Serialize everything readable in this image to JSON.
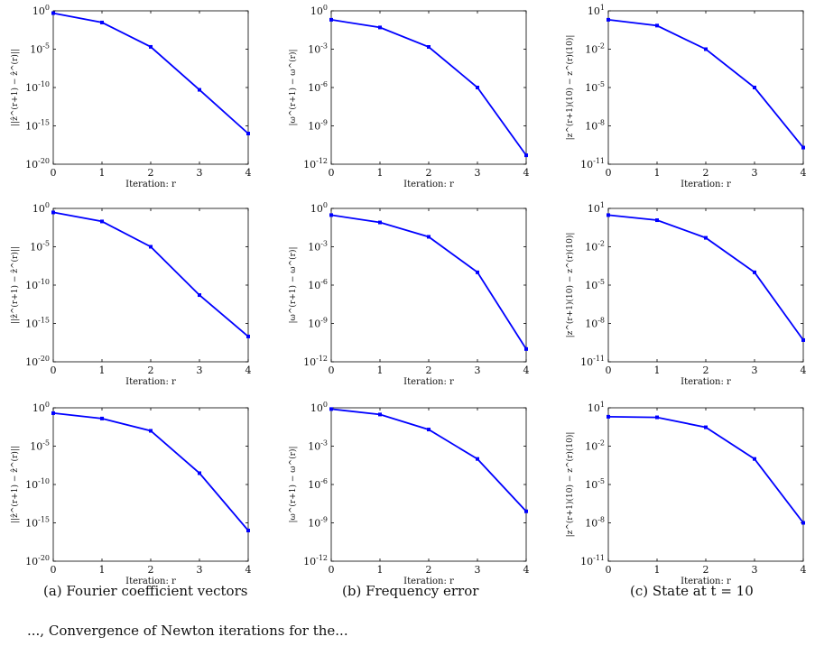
{
  "captions": {
    "a": "(a) Fourier coefficient vectors",
    "b": "(b) Frequency error",
    "c": "(c) State at t = 10"
  },
  "bottom_text": "..., Convergence of Newton iterations for the...",
  "style": {
    "line_color": "#0000ff",
    "axis_color": "#000000"
  },
  "chart_data": [
    {
      "type": "line",
      "panel": "row1-col1",
      "xlabel": "Iteration: r",
      "ylabel": "||ẑ^(r+1) − ẑ^(r)||",
      "log_y": true,
      "ylim": [
        1e-20,
        1
      ],
      "xlim": [
        0,
        4
      ],
      "xticks": [
        0,
        1,
        2,
        3,
        4
      ],
      "yticks": [
        1e-20,
        1e-15,
        1e-10,
        1e-05,
        1
      ],
      "ytick_labels": [
        "10^-20",
        "10^-15",
        "10^-10",
        "10^-5",
        "10^0"
      ],
      "x": [
        0,
        1,
        2,
        3,
        4
      ],
      "y": [
        0.5,
        0.03,
        2e-05,
        5e-11,
        1e-16
      ]
    },
    {
      "type": "line",
      "panel": "row1-col2",
      "xlabel": "Iteration: r",
      "ylabel": "|ω^(r+1) − ω^(r)|",
      "log_y": true,
      "ylim": [
        1e-12,
        1
      ],
      "xlim": [
        0,
        4
      ],
      "xticks": [
        0,
        1,
        2,
        3,
        4
      ],
      "yticks": [
        1e-12,
        1e-09,
        1e-06,
        0.001,
        1
      ],
      "ytick_labels": [
        "10^-12",
        "10^-9",
        "10^-6",
        "10^-3",
        "10^0"
      ],
      "x": [
        0,
        1,
        2,
        3,
        4
      ],
      "y": [
        0.2,
        0.05,
        0.0015,
        1e-06,
        5e-12
      ]
    },
    {
      "type": "line",
      "panel": "row1-col3",
      "xlabel": "Iteration: r",
      "ylabel": "|z^(r+1)(10) − z^(r)(10)|",
      "log_y": true,
      "ylim": [
        1e-11,
        10
      ],
      "xlim": [
        0,
        4
      ],
      "xticks": [
        0,
        1,
        2,
        3,
        4
      ],
      "yticks": [
        1e-11,
        1e-08,
        1e-05,
        0.01,
        10
      ],
      "ytick_labels": [
        "10^-11",
        "10^-8",
        "10^-5",
        "10^-2",
        "10^1"
      ],
      "x": [
        0,
        1,
        2,
        3,
        4
      ],
      "y": [
        2,
        0.7,
        0.01,
        1e-05,
        2e-10
      ]
    },
    {
      "type": "line",
      "panel": "row2-col1",
      "xlabel": "Iteration: r",
      "ylabel": "||ẑ^(r+1) − ẑ^(r)||",
      "log_y": true,
      "ylim": [
        1e-20,
        1
      ],
      "xlim": [
        0,
        4
      ],
      "xticks": [
        0,
        1,
        2,
        3,
        4
      ],
      "yticks": [
        1e-20,
        1e-15,
        1e-10,
        1e-05,
        1
      ],
      "ytick_labels": [
        "10^-20",
        "10^-15",
        "10^-10",
        "10^-5",
        "10^0"
      ],
      "x": [
        0,
        1,
        2,
        3,
        4
      ],
      "y": [
        0.3,
        0.02,
        1e-05,
        5e-12,
        2e-17
      ]
    },
    {
      "type": "line",
      "panel": "row2-col2",
      "xlabel": "Iteration: r",
      "ylabel": "|ω^(r+1) − ω^(r)|",
      "log_y": true,
      "ylim": [
        1e-12,
        1
      ],
      "xlim": [
        0,
        4
      ],
      "xticks": [
        0,
        1,
        2,
        3,
        4
      ],
      "yticks": [
        1e-12,
        1e-09,
        1e-06,
        0.001,
        1
      ],
      "ytick_labels": [
        "10^-12",
        "10^-9",
        "10^-6",
        "10^-3",
        "10^0"
      ],
      "x": [
        0,
        1,
        2,
        3,
        4
      ],
      "y": [
        0.3,
        0.08,
        0.006,
        1e-05,
        1e-11
      ]
    },
    {
      "type": "line",
      "panel": "row2-col3",
      "xlabel": "Iteration: r",
      "ylabel": "|z^(r+1)(10) − z^(r)(10)|",
      "log_y": true,
      "ylim": [
        1e-11,
        10
      ],
      "xlim": [
        0,
        4
      ],
      "xticks": [
        0,
        1,
        2,
        3,
        4
      ],
      "yticks": [
        1e-11,
        1e-08,
        1e-05,
        0.01,
        10
      ],
      "ytick_labels": [
        "10^-11",
        "10^-8",
        "10^-5",
        "10^-2",
        "10^1"
      ],
      "x": [
        0,
        1,
        2,
        3,
        4
      ],
      "y": [
        3,
        1.2,
        0.05,
        0.0001,
        5e-10
      ]
    },
    {
      "type": "line",
      "panel": "row3-col1",
      "xlabel": "Iteration: r",
      "ylabel": "||ẑ^(r+1) − ẑ^(r)||",
      "log_y": true,
      "ylim": [
        1e-20,
        1
      ],
      "xlim": [
        0,
        4
      ],
      "xticks": [
        0,
        1,
        2,
        3,
        4
      ],
      "yticks": [
        1e-20,
        1e-15,
        1e-10,
        1e-05,
        1
      ],
      "ytick_labels": [
        "10^-20",
        "10^-15",
        "10^-10",
        "10^-5",
        "10^0"
      ],
      "x": [
        0,
        1,
        2,
        3,
        4
      ],
      "y": [
        0.2,
        0.04,
        0.001,
        3e-09,
        1e-16
      ]
    },
    {
      "type": "line",
      "panel": "row3-col2",
      "xlabel": "Iteration: r",
      "ylabel": "|ω^(r+1) − ω^(r)|",
      "log_y": true,
      "ylim": [
        1e-12,
        1
      ],
      "xlim": [
        0,
        4
      ],
      "xticks": [
        0,
        1,
        2,
        3,
        4
      ],
      "yticks": [
        1e-12,
        1e-09,
        1e-06,
        0.001,
        1
      ],
      "ytick_labels": [
        "10^-12",
        "10^-9",
        "10^-6",
        "10^-3",
        "10^0"
      ],
      "x": [
        0,
        1,
        2,
        3,
        4
      ],
      "y": [
        0.8,
        0.3,
        0.02,
        0.0001,
        8e-09
      ]
    },
    {
      "type": "line",
      "panel": "row3-col3",
      "xlabel": "Iteration: r",
      "ylabel": "|z^(r+1)(10) − z^(r)(10)|",
      "log_y": true,
      "ylim": [
        1e-11,
        10
      ],
      "xlim": [
        0,
        4
      ],
      "xticks": [
        0,
        1,
        2,
        3,
        4
      ],
      "yticks": [
        1e-11,
        1e-08,
        1e-05,
        0.01,
        10
      ],
      "ytick_labels": [
        "10^-11",
        "10^-8",
        "10^-5",
        "10^-2",
        "10^1"
      ],
      "x": [
        0,
        1,
        2,
        3,
        4
      ],
      "y": [
        2,
        1.8,
        0.3,
        0.001,
        1e-08
      ]
    }
  ]
}
